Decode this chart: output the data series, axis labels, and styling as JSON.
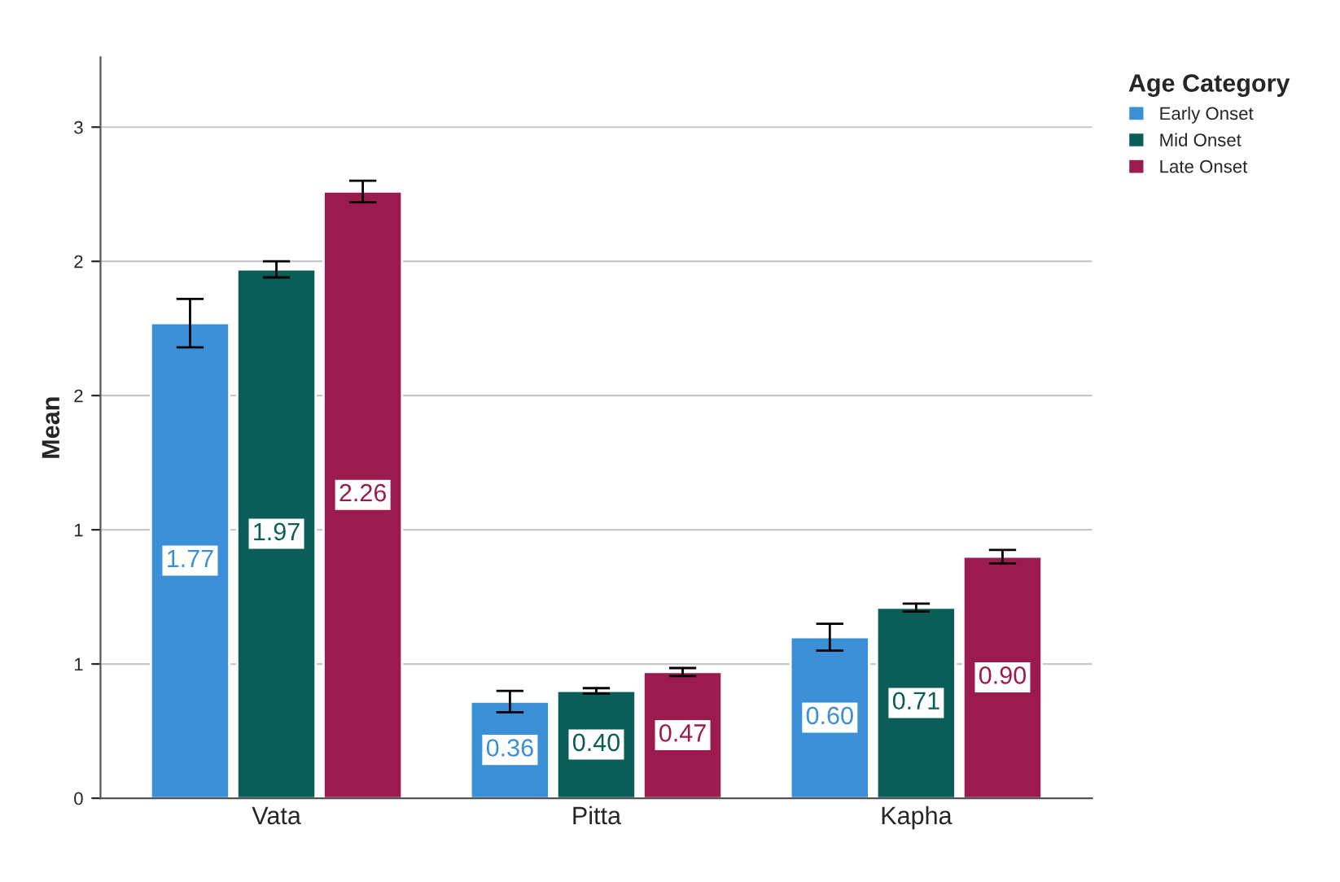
{
  "chart_data": {
    "type": "bar",
    "ylabel": "Mean",
    "legend_title": "Age Category",
    "categories": [
      "Vata",
      "Pitta",
      "Kapha"
    ],
    "series": [
      {
        "name": "Early Onset",
        "color": "#3a8fd6",
        "values": [
          1.77,
          0.36,
          0.6
        ],
        "value_labels": [
          "1.77",
          "0.36",
          "0.60"
        ],
        "errors": [
          0.09,
          0.04,
          0.05
        ]
      },
      {
        "name": "Mid Onset",
        "color": "#0b5e57",
        "values": [
          1.97,
          0.4,
          0.71
        ],
        "value_labels": [
          "1.97",
          "0.40",
          "0.71"
        ],
        "errors": [
          0.03,
          0.01,
          0.015
        ]
      },
      {
        "name": "Late Onset",
        "color": "#9b1b4e",
        "values": [
          2.26,
          0.47,
          0.9
        ],
        "value_labels": [
          "2.26",
          "0.47",
          "0.90"
        ],
        "errors": [
          0.04,
          0.015,
          0.025
        ]
      }
    ],
    "ylim": [
      0,
      2.76
    ],
    "yticks": [
      0,
      {
        "value": 0.5,
        "label": "1"
      },
      1,
      {
        "value": 1.5,
        "label": "2"
      },
      2,
      {
        "value": 2.5,
        "label": "3"
      }
    ],
    "grid": "y",
    "legend": "top right"
  }
}
